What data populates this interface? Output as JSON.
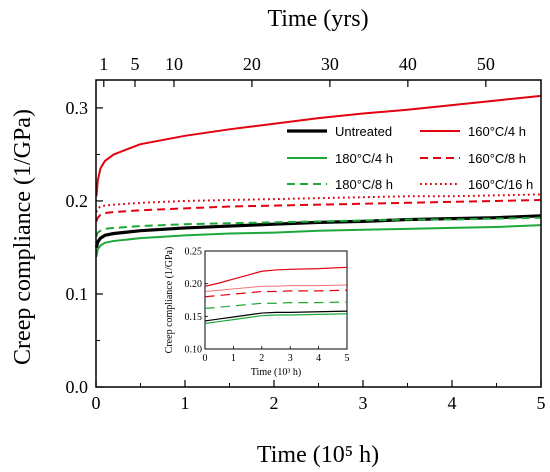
{
  "chart_data": {
    "type": "line",
    "xlabel": "Time (10⁵ h)",
    "ylabel": "Creep compliance (1/GPa)",
    "top_axis_label": "Time (yrs)",
    "xlim": [
      0,
      5
    ],
    "ylim": [
      0,
      0.33
    ],
    "x_ticks": [
      "0",
      "1",
      "2",
      "3",
      "4",
      "5"
    ],
    "y_ticks": [
      "0.0",
      "0.1",
      "0.2",
      "0.3"
    ],
    "top_ticks": [
      {
        "value": 1,
        "label": "1"
      },
      {
        "value": 5,
        "label": "5"
      },
      {
        "value": 10,
        "label": "10"
      },
      {
        "value": 20,
        "label": "20"
      },
      {
        "value": 30,
        "label": "30"
      },
      {
        "value": 40,
        "label": "40"
      },
      {
        "value": 50,
        "label": "50"
      }
    ],
    "legend_position": "top-right",
    "series": [
      {
        "name": "Untreated",
        "color": "#000000",
        "style": "solid",
        "width": 3.2,
        "x": [
          0.005,
          0.02,
          0.05,
          0.1,
          0.2,
          0.5,
          1,
          1.5,
          2,
          2.5,
          3,
          3.5,
          4,
          4.5,
          5
        ],
        "y": [
          0.15,
          0.156,
          0.16,
          0.163,
          0.165,
          0.168,
          0.171,
          0.173,
          0.175,
          0.177,
          0.178,
          0.18,
          0.181,
          0.182,
          0.184
        ]
      },
      {
        "name": "160°C/4 h",
        "color": "#e3000f",
        "style": "solid",
        "width": 2,
        "x": [
          0.005,
          0.02,
          0.05,
          0.1,
          0.2,
          0.5,
          1,
          1.5,
          2,
          2.5,
          3,
          3.5,
          4,
          4.5,
          5
        ],
        "y": [
          0.205,
          0.222,
          0.235,
          0.243,
          0.25,
          0.261,
          0.27,
          0.277,
          0.283,
          0.289,
          0.294,
          0.298,
          0.303,
          0.308,
          0.313
        ]
      },
      {
        "name": "180°C/4 h",
        "color": "#1ea83a",
        "style": "solid",
        "width": 2,
        "x": [
          0.005,
          0.02,
          0.05,
          0.1,
          0.2,
          0.5,
          1,
          1.5,
          2,
          2.5,
          3,
          3.5,
          4,
          4.5,
          5
        ],
        "y": [
          0.14,
          0.148,
          0.152,
          0.155,
          0.157,
          0.16,
          0.163,
          0.165,
          0.166,
          0.168,
          0.169,
          0.17,
          0.171,
          0.172,
          0.174
        ]
      },
      {
        "name": "160°C/8 h",
        "color": "#e3000f",
        "style": "dashed",
        "width": 2,
        "x": [
          0.005,
          0.02,
          0.05,
          0.1,
          0.2,
          0.5,
          1,
          1.5,
          2,
          2.5,
          3,
          3.5,
          4,
          4.5,
          5
        ],
        "y": [
          0.178,
          0.182,
          0.185,
          0.187,
          0.188,
          0.19,
          0.192,
          0.194,
          0.195,
          0.196,
          0.197,
          0.198,
          0.199,
          0.2,
          0.201
        ]
      },
      {
        "name": "180°C/8 h",
        "color": "#1ea83a",
        "style": "dashed",
        "width": 2,
        "x": [
          0.005,
          0.02,
          0.05,
          0.1,
          0.2,
          0.5,
          1,
          1.5,
          2,
          2.5,
          3,
          3.5,
          4,
          4.5,
          5
        ],
        "y": [
          0.162,
          0.166,
          0.168,
          0.17,
          0.171,
          0.173,
          0.175,
          0.176,
          0.177,
          0.178,
          0.179,
          0.18,
          0.18,
          0.181,
          0.182
        ]
      },
      {
        "name": "160°C/16 h",
        "color": "#e3000f",
        "style": "dotted",
        "width": 2,
        "x": [
          0.005,
          0.02,
          0.05,
          0.1,
          0.2,
          0.5,
          1,
          1.5,
          2,
          2.5,
          3,
          3.5,
          4,
          4.5,
          5
        ],
        "y": [
          0.188,
          0.192,
          0.194,
          0.195,
          0.196,
          0.198,
          0.2,
          0.201,
          0.202,
          0.203,
          0.204,
          0.205,
          0.205,
          0.206,
          0.207
        ]
      }
    ],
    "inset": {
      "xlabel": "Time (10³ h)",
      "ylabel": "Creep compliance (1/GPa)",
      "xlim": [
        0,
        5
      ],
      "ylim": [
        0.1,
        0.25
      ],
      "x_ticks": [
        "0",
        "1",
        "2",
        "3",
        "4",
        "5"
      ],
      "y_ticks": [
        "0.10",
        "0.15",
        "0.20",
        "0.25"
      ],
      "series": [
        {
          "name": "Untreated",
          "color": "#000000",
          "style": "solid",
          "width": 1.2,
          "x": [
            0,
            0.5,
            1,
            1.5,
            2,
            2.5,
            3,
            4,
            5
          ],
          "y": [
            0.143,
            0.146,
            0.149,
            0.152,
            0.155,
            0.156,
            0.156,
            0.157,
            0.158
          ]
        },
        {
          "name": "160°C/4 h",
          "color": "#e3000f",
          "style": "solid",
          "width": 1.2,
          "x": [
            0,
            0.5,
            1,
            1.5,
            2,
            2.5,
            3,
            4,
            5
          ],
          "y": [
            0.196,
            0.201,
            0.207,
            0.213,
            0.219,
            0.221,
            0.222,
            0.223,
            0.225
          ]
        },
        {
          "name": "180°C/4 h",
          "color": "#1ea83a",
          "style": "solid",
          "width": 1.2,
          "x": [
            0,
            0.5,
            1,
            1.5,
            2,
            2.5,
            3,
            4,
            5
          ],
          "y": [
            0.139,
            0.142,
            0.145,
            0.148,
            0.151,
            0.152,
            0.152,
            0.153,
            0.154
          ]
        },
        {
          "name": "160°C/8 h",
          "color": "#e3000f",
          "style": "dashed",
          "width": 1.2,
          "x": [
            0,
            0.5,
            1,
            1.5,
            2,
            2.5,
            3,
            4,
            5
          ],
          "y": [
            0.18,
            0.182,
            0.184,
            0.186,
            0.188,
            0.188,
            0.189,
            0.189,
            0.19
          ]
        },
        {
          "name": "180°C/8 h",
          "color": "#1ea83a",
          "style": "dashed",
          "width": 1.2,
          "x": [
            0,
            0.5,
            1,
            1.5,
            2,
            2.5,
            3,
            4,
            5
          ],
          "y": [
            0.162,
            0.164,
            0.166,
            0.168,
            0.17,
            0.17,
            0.171,
            0.171,
            0.172
          ]
        },
        {
          "name": "160°C/16 h",
          "color": "#e3000f",
          "style": "solid-light",
          "width": 1.0,
          "x": [
            0,
            0.5,
            1,
            1.5,
            2,
            2.5,
            3,
            4,
            5
          ],
          "y": [
            0.188,
            0.19,
            0.192,
            0.194,
            0.196,
            0.196,
            0.197,
            0.197,
            0.198
          ]
        }
      ]
    }
  }
}
